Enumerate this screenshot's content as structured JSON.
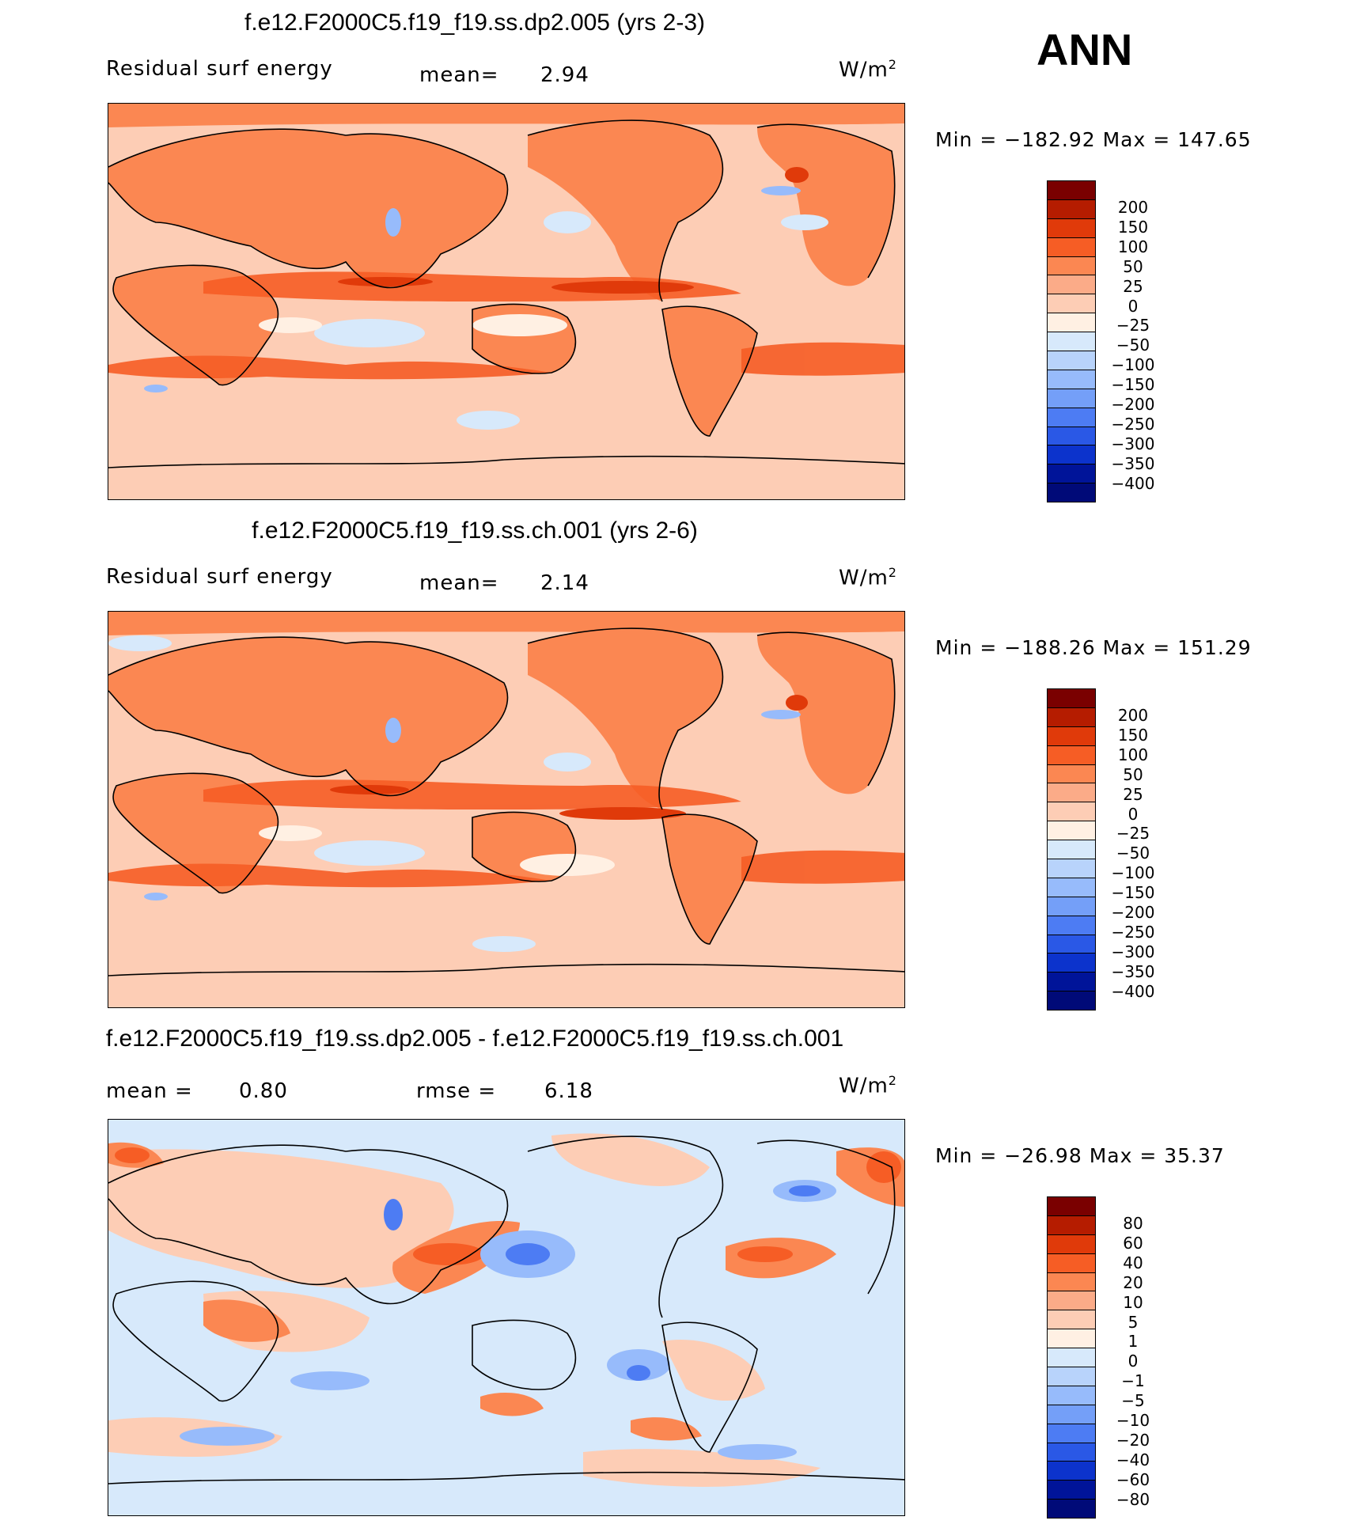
{
  "season": "ANN",
  "colors": {
    "abs_scale": [
      "#7a0000",
      "#b51c00",
      "#e03a0a",
      "#f65d25",
      "#fb8752",
      "#fbab88",
      "#fdcdb5",
      "#fff0e3",
      "#d7e9fb",
      "#b8d3fb",
      "#97bbfb",
      "#749ff8",
      "#4d7cf3",
      "#2a58e6",
      "#0c33cc",
      "#001499",
      "#000a78"
    ],
    "diff_scale": [
      "#7a0000",
      "#b51c00",
      "#e03a0a",
      "#f65d25",
      "#fb8752",
      "#fbab88",
      "#fdcdb5",
      "#fff0e3",
      "#d7e9fb",
      "#b8d3fb",
      "#97bbfb",
      "#749ff8",
      "#4d7cf3",
      "#2a58e6",
      "#0c33cc",
      "#001499",
      "#000a78"
    ]
  },
  "panels": [
    {
      "title": "f.e12.F2000C5.f19_f19.ss.dp2.005 (yrs 2-3)",
      "left_label": "Residual surf energy",
      "mid_label": "mean=",
      "mid_value": "2.94",
      "units": "W/m",
      "units_sup": "2",
      "min_label": "Min",
      "min_value": "−182.92",
      "max_label": "Max",
      "max_value": "147.65",
      "levels": [
        "200",
        "150",
        "100",
        "50",
        "25",
        "0",
        "−25",
        "−50",
        "−100",
        "−150",
        "−200",
        "−250",
        "−300",
        "−350",
        "−400"
      ]
    },
    {
      "title": "f.e12.F2000C5.f19_f19.ss.ch.001 (yrs 2-6)",
      "left_label": "Residual surf energy",
      "mid_label": "mean=",
      "mid_value": "2.14",
      "units": "W/m",
      "units_sup": "2",
      "min_label": "Min",
      "min_value": "−188.26",
      "max_label": "Max",
      "max_value": "151.29",
      "levels": [
        "200",
        "150",
        "100",
        "50",
        "25",
        "0",
        "−25",
        "−50",
        "−100",
        "−150",
        "−200",
        "−250",
        "−300",
        "−350",
        "−400"
      ]
    },
    {
      "title": "f.e12.F2000C5.f19_f19.ss.dp2.005 - f.e12.F2000C5.f19_f19.ss.ch.001",
      "left_label": "mean =",
      "left_value": "0.80",
      "mid_label": "rmse =",
      "mid_value": "6.18",
      "units": "W/m",
      "units_sup": "2",
      "min_label": "Min",
      "min_value": "−26.98",
      "max_label": "Max",
      "max_value": "35.37",
      "levels": [
        "80",
        "60",
        "40",
        "20",
        "10",
        "5",
        "1",
        "0",
        "−1",
        "−5",
        "−10",
        "−20",
        "−40",
        "−60",
        "−80"
      ]
    }
  ]
}
